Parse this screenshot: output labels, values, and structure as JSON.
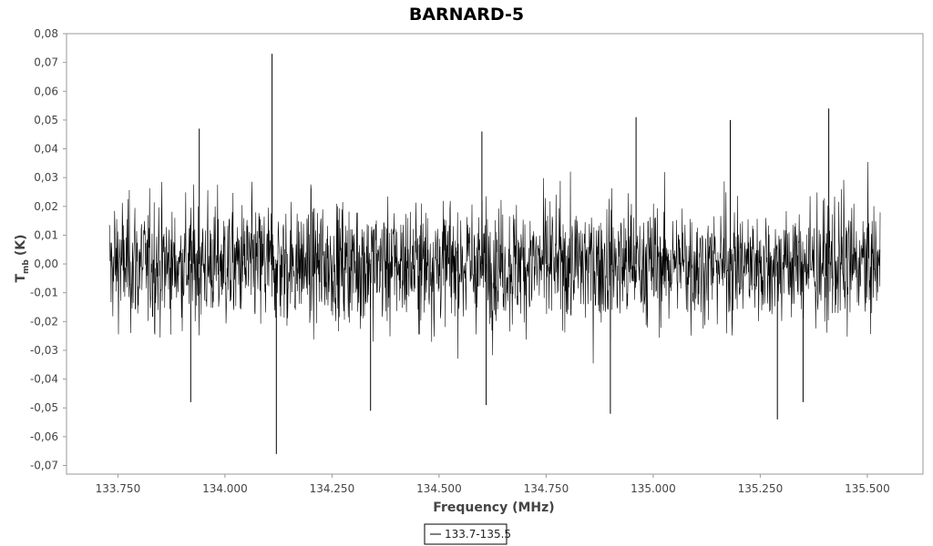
{
  "chart_data": {
    "type": "line",
    "title": "BARNARD-5",
    "xlabel": "Frequency (MHz)",
    "ylabel_main": "T",
    "ylabel_sub": "mb",
    "ylabel_unit": "(K)",
    "xlim": [
      133.63,
      135.63
    ],
    "ylim": [
      -0.073,
      0.08
    ],
    "x_ticks": [
      {
        "value": 133.75,
        "label": "133.750"
      },
      {
        "value": 134.0,
        "label": "134.000"
      },
      {
        "value": 134.25,
        "label": "134.250"
      },
      {
        "value": 134.5,
        "label": "134.500"
      },
      {
        "value": 134.75,
        "label": "134.750"
      },
      {
        "value": 135.0,
        "label": "135.000"
      },
      {
        "value": 135.25,
        "label": "135.250"
      },
      {
        "value": 135.5,
        "label": "135.500"
      }
    ],
    "y_ticks": [
      {
        "value": 0.08,
        "label": "0,08"
      },
      {
        "value": 0.07,
        "label": "0,07"
      },
      {
        "value": 0.06,
        "label": "0,06"
      },
      {
        "value": 0.05,
        "label": "0,05"
      },
      {
        "value": 0.04,
        "label": "0,04"
      },
      {
        "value": 0.03,
        "label": "0,03"
      },
      {
        "value": 0.02,
        "label": "0,02"
      },
      {
        "value": 0.01,
        "label": "0,01"
      },
      {
        "value": 0.0,
        "label": "0,00"
      },
      {
        "value": -0.01,
        "label": "-0,01"
      },
      {
        "value": -0.02,
        "label": "-0,02"
      },
      {
        "value": -0.03,
        "label": "-0,03"
      },
      {
        "value": -0.04,
        "label": "-0,04"
      },
      {
        "value": -0.05,
        "label": "-0,05"
      },
      {
        "value": -0.06,
        "label": "-0,06"
      },
      {
        "value": -0.07,
        "label": "-0,07"
      }
    ],
    "series": [
      {
        "name": "133.7-135.5",
        "color": "#000000",
        "x_range": [
          133.73,
          135.53
        ],
        "noise_rms": 0.012,
        "max_abs": 0.04,
        "spikes": [
          {
            "x": 134.11,
            "y": 0.073
          },
          {
            "x": 134.12,
            "y": -0.066
          },
          {
            "x": 133.94,
            "y": 0.047
          },
          {
            "x": 133.92,
            "y": -0.048
          },
          {
            "x": 134.34,
            "y": -0.051
          },
          {
            "x": 134.6,
            "y": 0.046
          },
          {
            "x": 134.61,
            "y": -0.049
          },
          {
            "x": 134.9,
            "y": -0.052
          },
          {
            "x": 134.96,
            "y": 0.051
          },
          {
            "x": 135.18,
            "y": 0.05
          },
          {
            "x": 135.29,
            "y": -0.054
          },
          {
            "x": 135.41,
            "y": 0.054
          },
          {
            "x": 135.35,
            "y": -0.048
          }
        ]
      }
    ],
    "legend_position": "bottom-center",
    "grid": false
  }
}
